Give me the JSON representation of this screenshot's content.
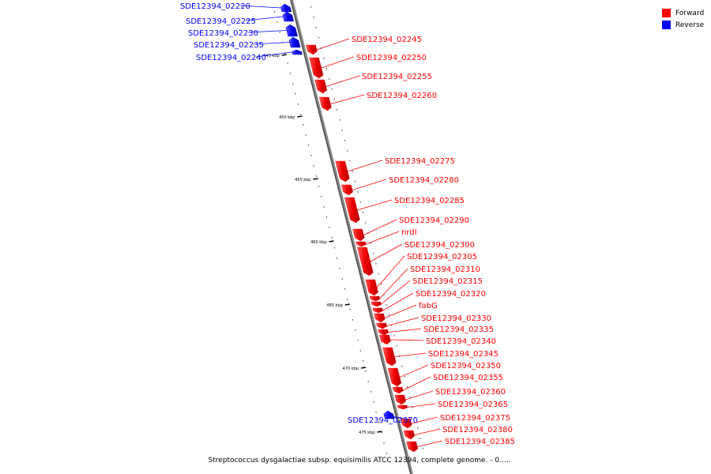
{
  "legend": {
    "forward": {
      "label": "Forward",
      "color": "#ff0000"
    },
    "reverse": {
      "label": "Reverse",
      "color": "#0000ff"
    }
  },
  "caption": "Streptococcus dysgalactiae subsp. equisimilis ATCC 12394, complete genome. - 0.....",
  "kbp_marks": [
    "445 kbp",
    "450 kbp",
    "455 kbp",
    "460 kbp",
    "465 kbp",
    "470 kbp",
    "475 kbp"
  ],
  "genes": [
    {
      "name": "SDE12394_02220",
      "strand": "reverse"
    },
    {
      "name": "SDE12394_02225",
      "strand": "reverse"
    },
    {
      "name": "SDE12394_02230",
      "strand": "reverse"
    },
    {
      "name": "SDE12394_02235",
      "strand": "reverse"
    },
    {
      "name": "SDE12394_02240",
      "strand": "reverse"
    },
    {
      "name": "SDE12394_02245",
      "strand": "forward"
    },
    {
      "name": "SDE12394_02250",
      "strand": "forward"
    },
    {
      "name": "SDE12394_02255",
      "strand": "forward"
    },
    {
      "name": "SDE12394_02260",
      "strand": "forward"
    },
    {
      "name": "SDE12394_02275",
      "strand": "forward"
    },
    {
      "name": "SDE12394_02280",
      "strand": "forward"
    },
    {
      "name": "SDE12394_02285",
      "strand": "forward"
    },
    {
      "name": "SDE12394_02290",
      "strand": "forward"
    },
    {
      "name": "nrdI",
      "strand": "forward"
    },
    {
      "name": "SDE12394_02300",
      "strand": "forward"
    },
    {
      "name": "SDE12394_02305",
      "strand": "forward"
    },
    {
      "name": "SDE12394_02310",
      "strand": "forward"
    },
    {
      "name": "SDE12394_02315",
      "strand": "forward"
    },
    {
      "name": "SDE12394_02320",
      "strand": "forward"
    },
    {
      "name": "fabG",
      "strand": "forward"
    },
    {
      "name": "SDE12394_02330",
      "strand": "forward"
    },
    {
      "name": "SDE12394_02335",
      "strand": "forward"
    },
    {
      "name": "SDE12394_02340",
      "strand": "forward"
    },
    {
      "name": "SDE12394_02345",
      "strand": "forward"
    },
    {
      "name": "SDE12394_02350",
      "strand": "forward"
    },
    {
      "name": "SDE12394_02355",
      "strand": "forward"
    },
    {
      "name": "SDE12394_02360",
      "strand": "forward"
    },
    {
      "name": "SDE12394_02365",
      "strand": "forward"
    },
    {
      "name": "SDE12394_02370",
      "strand": "reverse"
    },
    {
      "name": "SDE12394_02375",
      "strand": "forward"
    },
    {
      "name": "SDE12394_02380",
      "strand": "forward"
    },
    {
      "name": "SDE12394_02385",
      "strand": "forward"
    }
  ]
}
